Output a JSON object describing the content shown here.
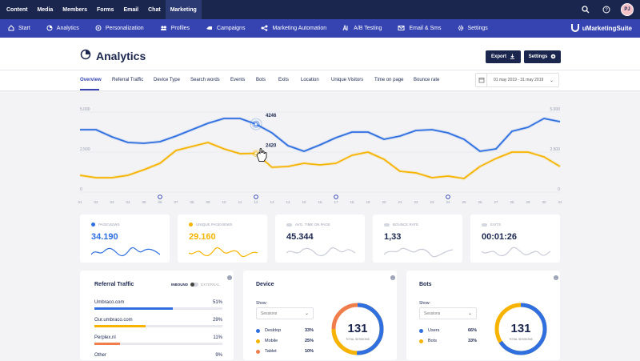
{
  "topnav": {
    "items": [
      "Content",
      "Media",
      "Members",
      "Forms",
      "Email",
      "Chat",
      "Marketing"
    ],
    "active": "Marketing",
    "avatar": "PJ"
  },
  "subnav": {
    "items": [
      {
        "label": "Start",
        "icon": "home-icon"
      },
      {
        "label": "Analytics",
        "icon": "pie-chart-icon"
      },
      {
        "label": "Personalization",
        "icon": "personalization-icon"
      },
      {
        "label": "Profiles",
        "icon": "profiles-icon"
      },
      {
        "label": "Campaigns",
        "icon": "campaigns-icon"
      },
      {
        "label": "Marketing Automation",
        "icon": "automation-icon"
      },
      {
        "label": "A/B Testing",
        "icon": "ab-testing-icon"
      },
      {
        "label": "Email & Sms",
        "icon": "email-icon"
      },
      {
        "label": "Settings",
        "icon": "settings-icon"
      }
    ],
    "brand": "uMarketingSuite"
  },
  "header": {
    "title": "Analytics",
    "export_label": "Export",
    "settings_label": "Settings"
  },
  "tabs": [
    "Overview",
    "Referral Traffic",
    "Device Type",
    "Search words",
    "Events",
    "Bots",
    "Exits",
    "Location",
    "Unique Visitors",
    "Time on page",
    "Bounce rate"
  ],
  "date_range": "01 may 2019 - 31 may 2019",
  "chart_data": {
    "type": "line",
    "x": [
      "01",
      "02",
      "03",
      "04",
      "05",
      "06",
      "07",
      "08",
      "09",
      "10",
      "11",
      "12",
      "13",
      "14",
      "15",
      "16",
      "17",
      "18",
      "19",
      "20",
      "21",
      "22",
      "23",
      "24",
      "25",
      "26",
      "27",
      "28",
      "29",
      "30",
      "31"
    ],
    "ylim": [
      0,
      5000
    ],
    "yticks": [
      "0",
      "2.500",
      "5.000"
    ],
    "series": [
      {
        "name": "Pageviews",
        "color": "#2f6fe0",
        "values": [
          3900,
          3900,
          3450,
          3100,
          3050,
          3150,
          3500,
          3900,
          4300,
          4600,
          4600,
          4246,
          3700,
          2900,
          2550,
          2950,
          3400,
          3750,
          3750,
          3300,
          3500,
          3850,
          3900,
          3700,
          3300,
          2550,
          2700,
          3800,
          4050,
          4600,
          4400
        ]
      },
      {
        "name": "Unique pageviews",
        "color": "#f6b400",
        "values": [
          1050,
          900,
          900,
          1050,
          1400,
          1800,
          2600,
          2850,
          3100,
          2700,
          2400,
          2420,
          1550,
          1600,
          1800,
          1700,
          1800,
          2300,
          2500,
          2050,
          1300,
          1200,
          900,
          1000,
          850,
          1600,
          2100,
          2500,
          2500,
          2200,
          1600
        ]
      }
    ],
    "annotations": [
      {
        "text": "4246"
      },
      {
        "text": "2420"
      }
    ]
  },
  "kpis": [
    {
      "label": "PAGEVIEWS",
      "value": "34.190",
      "color": "#2f6fe0",
      "active": true
    },
    {
      "label": "UNIQUE PAGEVIEWS",
      "value": "29.160",
      "color": "#f6b400",
      "active": true
    },
    {
      "label": "AVG. TIME ON PAGE",
      "value": "45.344",
      "color": "#c9ccd8",
      "active": false
    },
    {
      "label": "BOUNCE RATE",
      "value": "1,33",
      "color": "#c9ccd8",
      "active": false
    },
    {
      "label": "EXITS",
      "value": "00:01:26",
      "color": "#c9ccd8",
      "active": false
    }
  ],
  "referral": {
    "title": "Referral Traffic",
    "toggle_on": "INBOUND",
    "toggle_off": "EXTERNAL",
    "rows": [
      {
        "name": "Umbraco.com",
        "pct": "51%",
        "value": 0.51,
        "color": "#2f6fe0"
      },
      {
        "name": "Our.umbraco.com",
        "pct": "29%",
        "value": 0.29,
        "color": "#f6b400"
      },
      {
        "name": "Perplex.nl",
        "pct": "11%",
        "value": 0.11,
        "color": "#f07d4c"
      },
      {
        "name": "Other",
        "pct": "9%",
        "value": 0.09,
        "color": "#c9ccd8"
      }
    ]
  },
  "device": {
    "title": "Device",
    "show_label": "Show:",
    "select": "Sessions",
    "total": "131",
    "total_label": "TOTAL SESSIONS",
    "rows": [
      {
        "name": "Desktop",
        "pct": "33%",
        "color": "#2f6fe0"
      },
      {
        "name": "Mobile",
        "pct": "25%",
        "color": "#f6b400"
      },
      {
        "name": "Tablet",
        "pct": "10%",
        "color": "#f07d4c"
      }
    ]
  },
  "bots": {
    "title": "Bots",
    "show_label": "Show:",
    "select": "Sessions",
    "total": "131",
    "total_label": "TOTAL SESSIONS",
    "rows": [
      {
        "name": "Users",
        "pct": "66%",
        "color": "#2f6fe0"
      },
      {
        "name": "Bots",
        "pct": "33%",
        "color": "#f6b400"
      }
    ]
  }
}
